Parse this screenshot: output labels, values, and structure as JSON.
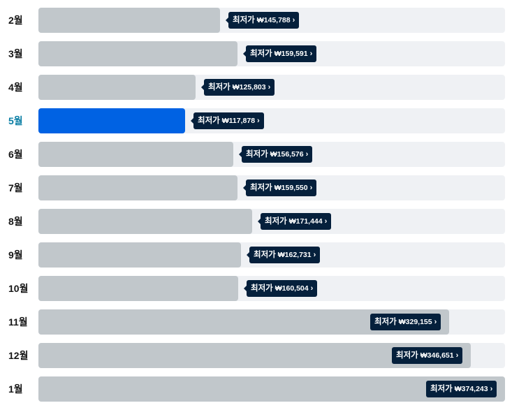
{
  "colors": {
    "track": "#eff1f4",
    "bar": "#c1c7cb",
    "bar_selected": "#0062e3",
    "tag_bg": "#05203c",
    "month_selected": "#0a7ea4"
  },
  "price_prefix": "최저가",
  "chevron_icon": "chevron-right-icon",
  "chart_data": {
    "type": "bar",
    "orientation": "horizontal",
    "categories": [
      "2월",
      "3월",
      "4월",
      "5월",
      "6월",
      "7월",
      "8월",
      "9월",
      "10월",
      "11월",
      "12월",
      "1월"
    ],
    "values": [
      145788,
      159591,
      125803,
      117878,
      156576,
      159550,
      171444,
      162731,
      160504,
      329155,
      346651,
      374243
    ],
    "value_labels": [
      "₩145,788",
      "₩159,591",
      "₩125,803",
      "₩117,878",
      "₩156,576",
      "₩159,550",
      "₩171,444",
      "₩162,731",
      "₩160,504",
      "₩329,155",
      "₩346,651",
      "₩374,243"
    ],
    "selected_index": 3,
    "xlim": [
      0,
      374243
    ]
  }
}
